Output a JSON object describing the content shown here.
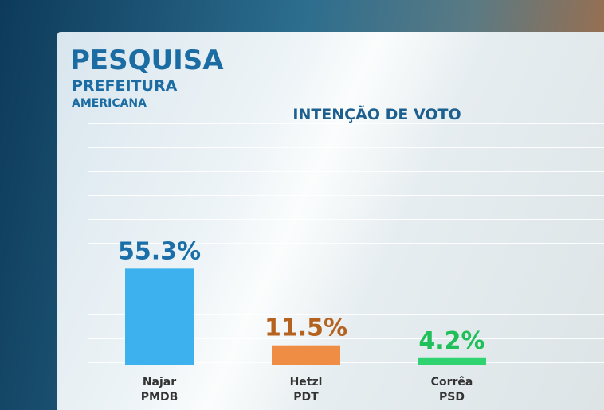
{
  "header": {
    "title": "PESQUISA",
    "subtitle": "PREFEITURA",
    "location": "AMERICANA"
  },
  "chart_data": {
    "type": "bar",
    "title": "INTENÇÃO DE VOTO",
    "categories": [
      "Najar",
      "Hetzl",
      "Corrêa"
    ],
    "parties": [
      "PMDB",
      "PDT",
      "PSD"
    ],
    "values": [
      55.3,
      11.5,
      4.2
    ],
    "value_labels": [
      "55.3%",
      "11.5%",
      "4.2%"
    ],
    "colors": [
      "#3db0ee",
      "#ef8d45",
      "#2fd470"
    ],
    "label_colors": [
      "#1a6fa8",
      "#b5621f",
      "#1fbf5a"
    ]
  }
}
